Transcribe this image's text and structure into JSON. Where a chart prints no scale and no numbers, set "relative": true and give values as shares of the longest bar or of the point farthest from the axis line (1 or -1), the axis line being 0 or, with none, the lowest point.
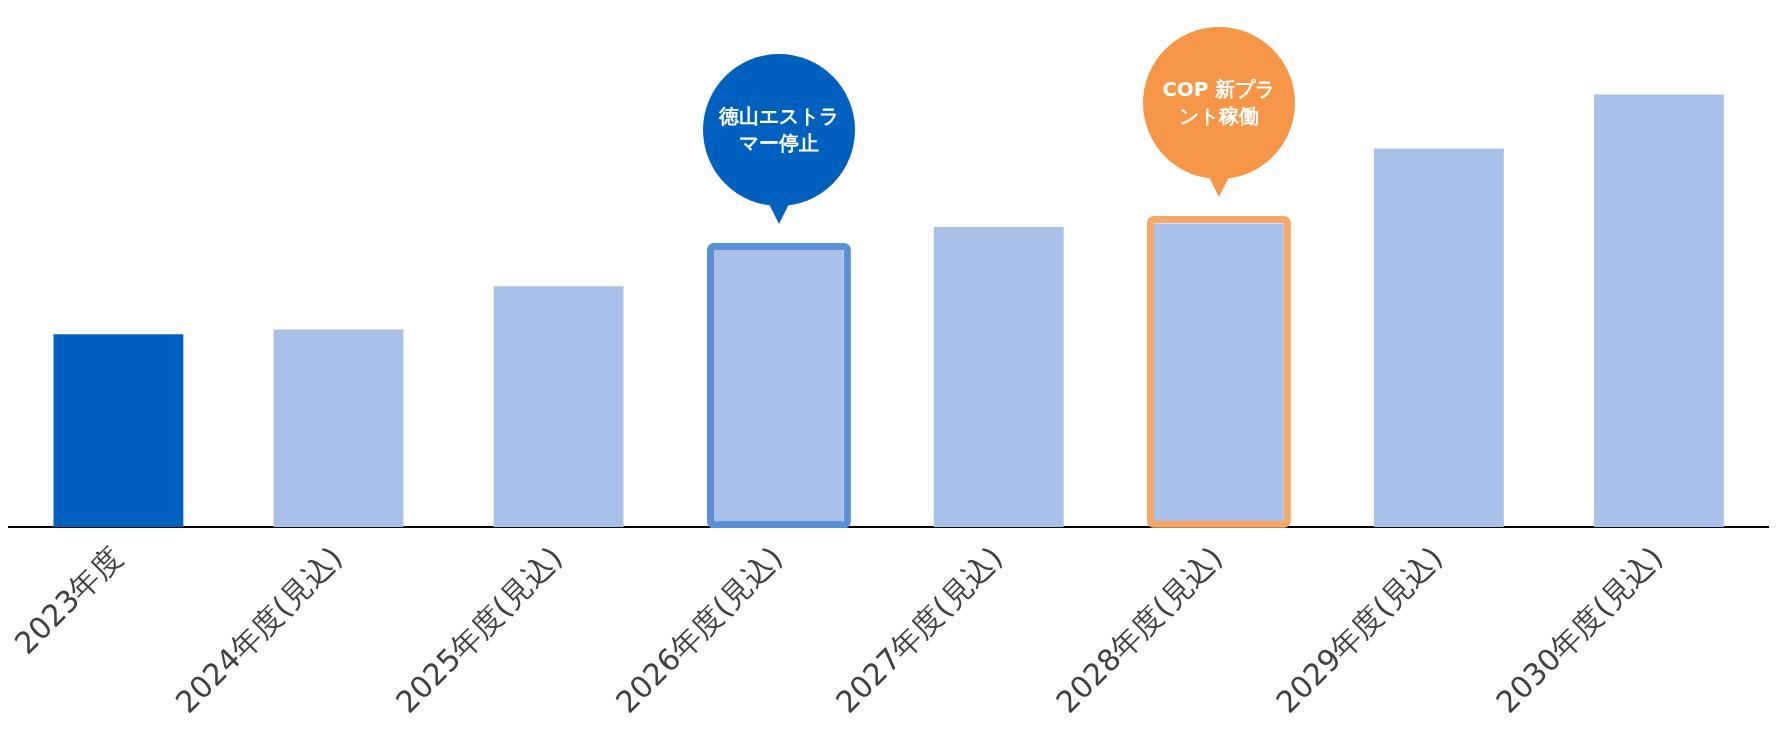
{
  "chart_data": {
    "type": "bar",
    "relative": true,
    "categories": [
      "2023年度",
      "2024年度(見込)",
      "2025年度(見込)",
      "2026年度(見込)",
      "2027年度(見込)",
      "2028年度(見込)",
      "2029年度(見込)",
      "2030年度(見込)"
    ],
    "values": [
      0.446,
      0.457,
      0.557,
      0.641,
      0.694,
      0.702,
      0.875,
      1
    ],
    "colors": [
      "#0060be",
      "#a9c1e8",
      "#a9c1e8",
      "#a9c1e8",
      "#a9c1e8",
      "#a9c1e8",
      "#a9c1e8",
      "#a9c1e8"
    ],
    "annotations": [
      "徳山エストラマー停止",
      "COP 新プラント稼働"
    ],
    "grid": false,
    "legend": false
  }
}
